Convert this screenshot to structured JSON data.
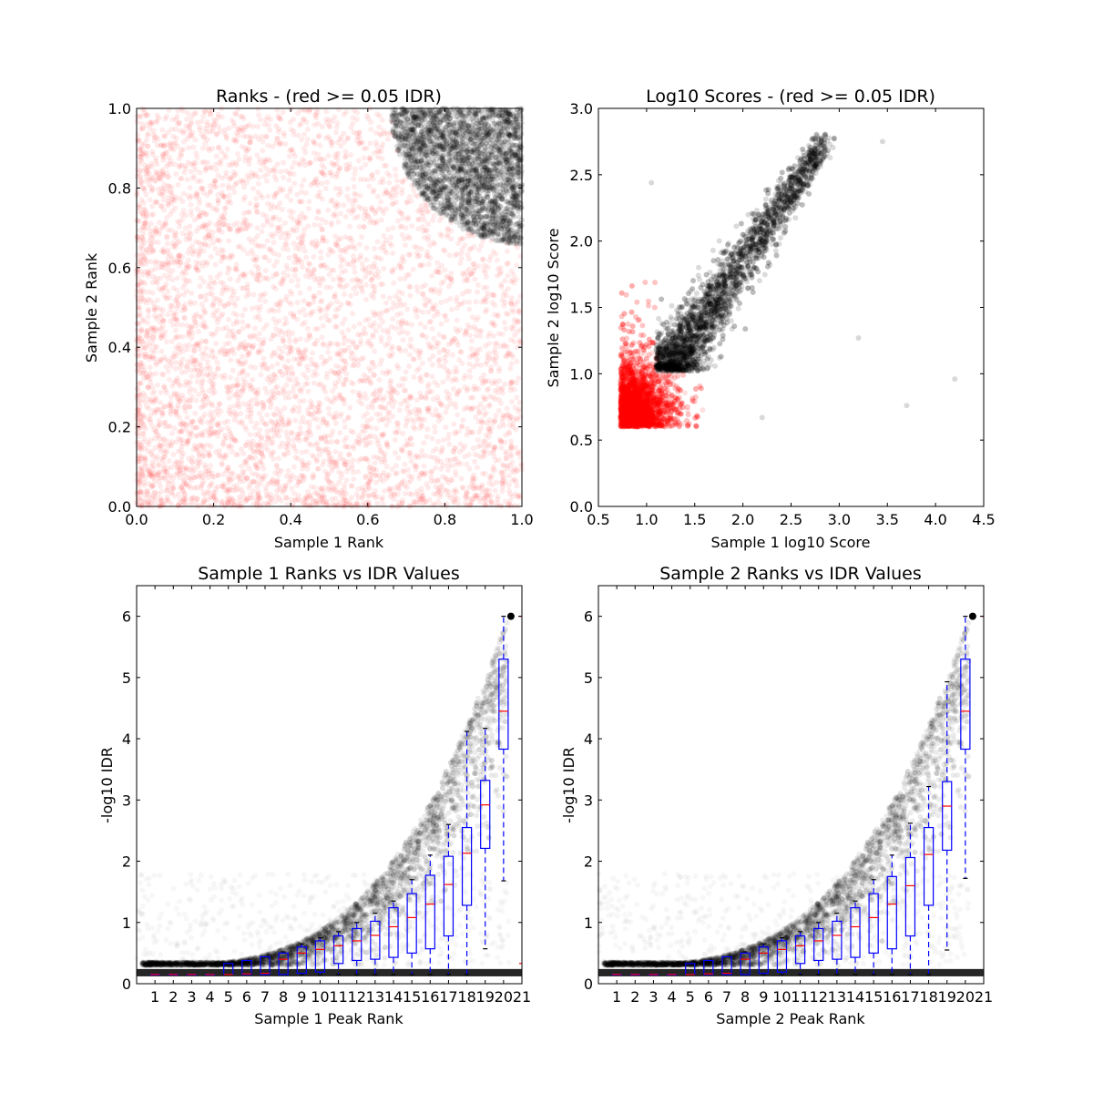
{
  "chart_data": [
    {
      "type": "scatter",
      "title": "Ranks - (red >= 0.05 IDR)",
      "xlabel": "Sample 1 Rank",
      "ylabel": "Sample 2 Rank",
      "xlim": [
        0.0,
        1.0
      ],
      "ylim": [
        0.0,
        1.0
      ],
      "x_ticks": [
        "0.0",
        "0.2",
        "0.4",
        "0.6",
        "0.8",
        "1.0"
      ],
      "y_ticks": [
        "0.0",
        "0.2",
        "0.4",
        "0.6",
        "0.8",
        "1.0"
      ],
      "grid": false,
      "series": [
        {
          "color": "#ff0000",
          "region": "x^2+y^2 spread over full unit square, excluding top-right corner",
          "approx_count": 6000
        },
        {
          "color": "#000000",
          "region": "top-right corner: points with x>0.66, y>0.66 near (1,1)",
          "approx_count": 2500
        }
      ],
      "point_alpha": 0.08
    },
    {
      "type": "scatter",
      "title": "Log10 Scores - (red >= 0.05 IDR)",
      "xlabel": "Sample 1 log10 Score",
      "ylabel": "Sample 2 log10 Score",
      "xlim": [
        0.5,
        4.5
      ],
      "ylim": [
        0.0,
        3.0
      ],
      "x_ticks": [
        "0.5",
        "1.0",
        "1.5",
        "2.0",
        "2.5",
        "3.0",
        "3.5",
        "4.0",
        "4.5"
      ],
      "y_ticks": [
        "0.0",
        "0.5",
        "1.0",
        "1.5",
        "2.0",
        "2.5",
        "3.0"
      ],
      "grid": false,
      "series": [
        {
          "color": "#ff0000",
          "x_range": [
            0.73,
            1.6
          ],
          "y_range": [
            0.6,
            1.7
          ]
        },
        {
          "color": "#000000",
          "x_range": [
            1.1,
            3.0
          ],
          "y_range": [
            1.02,
            2.77
          ]
        }
      ],
      "point_alpha": 0.08
    },
    {
      "type": "box",
      "title": "Sample 1 Ranks vs IDR Values",
      "xlabel": "Sample 1 Peak Rank",
      "ylabel": "-log10 IDR",
      "xlim": [
        0,
        21
      ],
      "ylim": [
        0,
        6.5
      ],
      "x_ticks": [
        "1",
        "2",
        "3",
        "4",
        "5",
        "6",
        "7",
        "8",
        "9",
        "10",
        "11",
        "12",
        "13",
        "14",
        "15",
        "16",
        "17",
        "18",
        "19",
        "20",
        "21"
      ],
      "y_ticks": [
        "0",
        "1",
        "2",
        "3",
        "4",
        "5",
        "6"
      ],
      "boxes": [
        {
          "q1": 0.15,
          "median": 0.15,
          "q3": 0.15,
          "whislo": 0.15,
          "whishi": 0.15
        },
        {
          "q1": 0.15,
          "median": 0.15,
          "q3": 0.15,
          "whislo": 0.15,
          "whishi": 0.15
        },
        {
          "q1": 0.15,
          "median": 0.15,
          "q3": 0.15,
          "whislo": 0.15,
          "whishi": 0.15
        },
        {
          "q1": 0.15,
          "median": 0.15,
          "q3": 0.15,
          "whislo": 0.15,
          "whishi": 0.15
        },
        {
          "q1": 0.15,
          "median": 0.15,
          "q3": 0.33,
          "whislo": 0.15,
          "whishi": 0.33
        },
        {
          "q1": 0.15,
          "median": 0.16,
          "q3": 0.38,
          "whislo": 0.15,
          "whishi": 0.38
        },
        {
          "q1": 0.15,
          "median": 0.17,
          "q3": 0.44,
          "whislo": 0.15,
          "whishi": 0.44
        },
        {
          "q1": 0.15,
          "median": 0.4,
          "q3": 0.5,
          "whislo": 0.15,
          "whishi": 0.52
        },
        {
          "q1": 0.17,
          "median": 0.5,
          "q3": 0.6,
          "whislo": 0.15,
          "whishi": 0.65
        },
        {
          "q1": 0.19,
          "median": 0.56,
          "q3": 0.7,
          "whislo": 0.15,
          "whishi": 0.75
        },
        {
          "q1": 0.33,
          "median": 0.62,
          "q3": 0.78,
          "whislo": 0.15,
          "whishi": 0.85
        },
        {
          "q1": 0.38,
          "median": 0.7,
          "q3": 0.9,
          "whislo": 0.15,
          "whishi": 1.0
        },
        {
          "q1": 0.4,
          "median": 0.79,
          "q3": 1.02,
          "whislo": 0.15,
          "whishi": 1.15
        },
        {
          "q1": 0.43,
          "median": 0.93,
          "q3": 1.24,
          "whislo": 0.15,
          "whishi": 1.35
        },
        {
          "q1": 0.5,
          "median": 1.08,
          "q3": 1.47,
          "whislo": 0.15,
          "whishi": 1.7
        },
        {
          "q1": 0.57,
          "median": 1.3,
          "q3": 1.77,
          "whislo": 0.15,
          "whishi": 2.1
        },
        {
          "q1": 0.78,
          "median": 1.62,
          "q3": 2.08,
          "whislo": 0.15,
          "whishi": 2.6
        },
        {
          "q1": 1.28,
          "median": 2.13,
          "q3": 2.55,
          "whislo": 0.15,
          "whishi": 4.12
        },
        {
          "q1": 2.21,
          "median": 2.92,
          "q3": 3.32,
          "whislo": 0.57,
          "whishi": 4.17
        },
        {
          "q1": 3.83,
          "median": 4.45,
          "q3": 5.3,
          "whislo": 1.68,
          "whishi": 6.0
        }
      ]
    },
    {
      "type": "box",
      "title": "Sample 2 Ranks vs IDR Values",
      "xlabel": "Sample 2 Peak Rank",
      "ylabel": "-log10 IDR",
      "xlim": [
        0,
        21
      ],
      "ylim": [
        0,
        6.5
      ],
      "x_ticks": [
        "1",
        "2",
        "3",
        "4",
        "5",
        "6",
        "7",
        "8",
        "9",
        "10",
        "11",
        "12",
        "13",
        "14",
        "15",
        "16",
        "17",
        "18",
        "19",
        "20",
        "21"
      ],
      "y_ticks": [
        "0",
        "1",
        "2",
        "3",
        "4",
        "5",
        "6"
      ],
      "boxes": [
        {
          "q1": 0.15,
          "median": 0.15,
          "q3": 0.15,
          "whislo": 0.15,
          "whishi": 0.15
        },
        {
          "q1": 0.15,
          "median": 0.15,
          "q3": 0.15,
          "whislo": 0.15,
          "whishi": 0.15
        },
        {
          "q1": 0.15,
          "median": 0.15,
          "q3": 0.15,
          "whislo": 0.15,
          "whishi": 0.15
        },
        {
          "q1": 0.15,
          "median": 0.15,
          "q3": 0.15,
          "whislo": 0.15,
          "whishi": 0.15
        },
        {
          "q1": 0.15,
          "median": 0.15,
          "q3": 0.33,
          "whislo": 0.15,
          "whishi": 0.33
        },
        {
          "q1": 0.15,
          "median": 0.16,
          "q3": 0.38,
          "whislo": 0.15,
          "whishi": 0.38
        },
        {
          "q1": 0.15,
          "median": 0.17,
          "q3": 0.44,
          "whislo": 0.15,
          "whishi": 0.44
        },
        {
          "q1": 0.15,
          "median": 0.4,
          "q3": 0.5,
          "whislo": 0.15,
          "whishi": 0.52
        },
        {
          "q1": 0.17,
          "median": 0.5,
          "q3": 0.6,
          "whislo": 0.15,
          "whishi": 0.65
        },
        {
          "q1": 0.19,
          "median": 0.56,
          "q3": 0.7,
          "whislo": 0.15,
          "whishi": 0.75
        },
        {
          "q1": 0.33,
          "median": 0.62,
          "q3": 0.78,
          "whislo": 0.15,
          "whishi": 0.85
        },
        {
          "q1": 0.38,
          "median": 0.7,
          "q3": 0.9,
          "whislo": 0.15,
          "whishi": 1.0
        },
        {
          "q1": 0.4,
          "median": 0.79,
          "q3": 1.02,
          "whislo": 0.15,
          "whishi": 1.15
        },
        {
          "q1": 0.43,
          "median": 0.93,
          "q3": 1.24,
          "whislo": 0.15,
          "whishi": 1.35
        },
        {
          "q1": 0.5,
          "median": 1.08,
          "q3": 1.47,
          "whislo": 0.15,
          "whishi": 1.7
        },
        {
          "q1": 0.57,
          "median": 1.3,
          "q3": 1.75,
          "whislo": 0.15,
          "whishi": 2.1
        },
        {
          "q1": 0.78,
          "median": 1.6,
          "q3": 2.06,
          "whislo": 0.15,
          "whishi": 2.62
        },
        {
          "q1": 1.28,
          "median": 2.11,
          "q3": 2.55,
          "whislo": 0.15,
          "whishi": 3.22
        },
        {
          "q1": 2.18,
          "median": 2.9,
          "q3": 3.3,
          "whislo": 0.55,
          "whishi": 4.93
        },
        {
          "q1": 3.83,
          "median": 4.45,
          "q3": 5.3,
          "whislo": 1.72,
          "whishi": 6.0
        }
      ]
    }
  ]
}
